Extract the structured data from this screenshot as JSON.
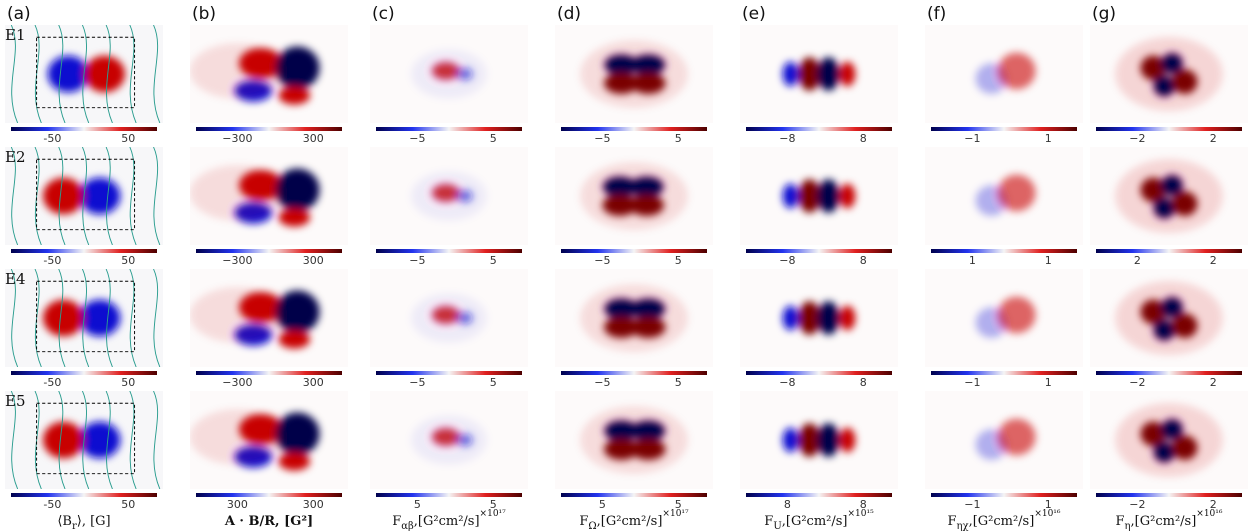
{
  "columns": [
    {
      "letter": "(a)",
      "label": [
        [
          "⟨B",
          "n"
        ],
        [
          "r",
          "sub"
        ],
        [
          "⟩, [G]",
          "n"
        ]
      ]
    },
    {
      "letter": "(b)",
      "label": [
        [
          "A · B/R, [G²]",
          "b"
        ]
      ]
    },
    {
      "letter": "(c)",
      "label": [
        [
          "F",
          "n"
        ],
        [
          "αβ",
          "sub"
        ],
        [
          ",[G²cm²/s]",
          "n"
        ],
        [
          "×10¹⁷",
          "sup"
        ]
      ]
    },
    {
      "letter": "(d)",
      "label": [
        [
          "F",
          "n"
        ],
        [
          "Ω",
          "sub"
        ],
        [
          ",[G²cm²/s]",
          "n"
        ],
        [
          "×10¹⁷",
          "sup"
        ]
      ]
    },
    {
      "letter": "(e)",
      "label": [
        [
          "F",
          "n"
        ],
        [
          "U",
          "sub"
        ],
        [
          ",[G²cm²/s]",
          "n"
        ],
        [
          "×10¹⁵",
          "sup"
        ]
      ]
    },
    {
      "letter": "(f)",
      "label": [
        [
          "F",
          "n"
        ],
        [
          "ηχ",
          "sub"
        ],
        [
          ",[G²cm²/s]",
          "n"
        ],
        [
          "×10¹⁶",
          "sup"
        ]
      ]
    },
    {
      "letter": "(g)",
      "label": [
        [
          "F",
          "n"
        ],
        [
          "η",
          "sub"
        ],
        [
          ",[G²cm²/s]",
          "n"
        ],
        [
          "×10¹⁶",
          "sup"
        ]
      ]
    }
  ],
  "rows": [
    {
      "label": "E1",
      "ticks": [
        [
          "-50",
          "50"
        ],
        [
          "−300",
          "300"
        ],
        [
          "−5",
          "5"
        ],
        [
          "−5",
          "5"
        ],
        [
          "−8",
          "8"
        ],
        [
          "−1",
          "1"
        ],
        [
          "−2",
          "2"
        ]
      ]
    },
    {
      "label": "E2",
      "ticks": [
        [
          "-50",
          "50"
        ],
        [
          "−300",
          "300"
        ],
        [
          "−5",
          "5"
        ],
        [
          "−5",
          "5"
        ],
        [
          "−8",
          "8"
        ],
        [
          "1",
          "1"
        ],
        [
          "2",
          "2"
        ]
      ]
    },
    {
      "label": "E4",
      "ticks": [
        [
          "-50",
          "50"
        ],
        [
          "−300",
          "300"
        ],
        [
          "−5",
          "5"
        ],
        [
          "−5",
          "5"
        ],
        [
          "−8",
          "8"
        ],
        [
          "−1",
          "1"
        ],
        [
          "−2",
          "2"
        ]
      ]
    },
    {
      "label": "E5",
      "ticks": [
        [
          "-50",
          "50"
        ],
        [
          "300",
          "300"
        ],
        [
          "5",
          "5"
        ],
        [
          "5",
          "5"
        ],
        [
          "8",
          "8"
        ],
        [
          "−1",
          "1"
        ],
        [
          "−2",
          "2"
        ]
      ]
    }
  ]
}
